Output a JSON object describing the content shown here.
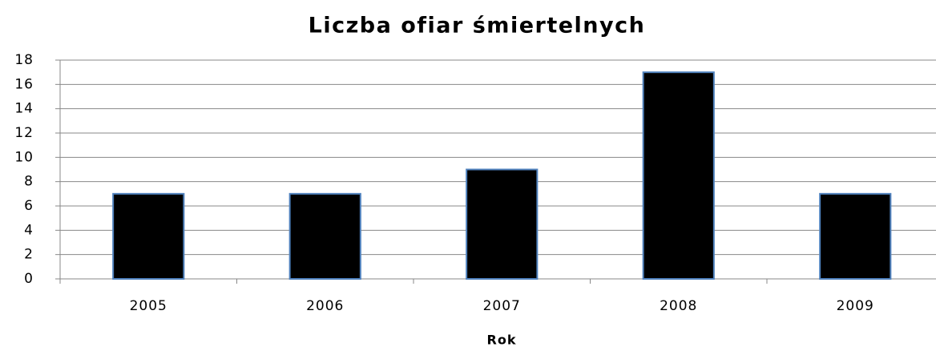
{
  "chart_data": {
    "type": "bar",
    "title": "Liczba ofiar śmiertelnych",
    "x_label": "Rok",
    "categories": [
      "2005",
      "2006",
      "2007",
      "2008",
      "2009"
    ],
    "values": [
      7,
      7,
      9,
      17,
      7
    ],
    "color": "#000000",
    "edge_color": "#4f81bd",
    "ylim": [
      0,
      18
    ],
    "yticks": [
      0,
      2,
      4,
      6,
      8,
      10,
      12,
      14,
      16,
      18
    ],
    "grid": true
  }
}
